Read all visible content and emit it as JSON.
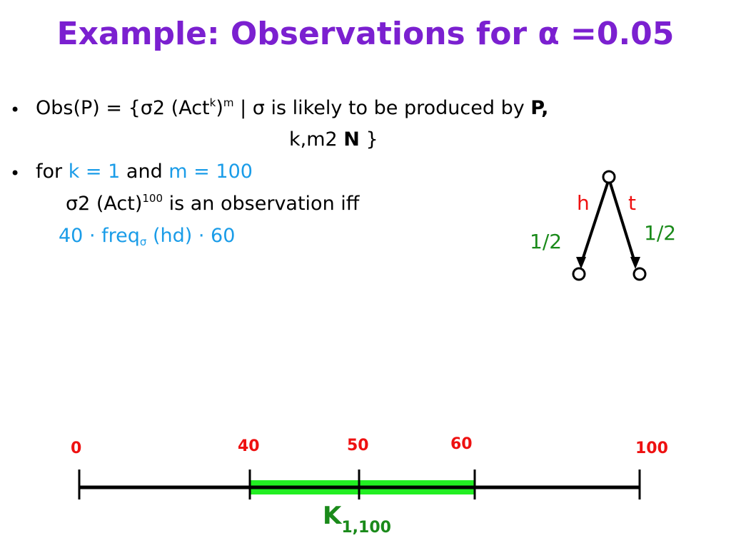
{
  "title": "Example: Observations for α =0.05",
  "bullet_symbol": "•",
  "line1": {
    "a": "Obs(P) = {",
    "sigma": "σ",
    "b": "2 (Act",
    "sup_k": "k",
    "c": ")",
    "sup_m": "m",
    "d": " | ",
    "sigma2": "σ",
    "e": " is likely to be produced by ",
    "bold_p": "P,"
  },
  "line2": {
    "a": "k,m2 ",
    "bold_n": "N",
    "b": " }"
  },
  "line3": {
    "for": "for ",
    "k_eq": "k = 1",
    "and": " and ",
    "m_eq": "m = 100"
  },
  "line4": {
    "sigma": "σ",
    "a": "2 (Act)",
    "sup": "100",
    "b": " is an observation iff"
  },
  "line5": {
    "a": "40 · freq",
    "sub": "σ",
    "b": " (hd) · 60"
  },
  "tree": {
    "left_label": "h",
    "right_label": "t",
    "left_prob": "1/2",
    "right_prob": "1/2"
  },
  "number_line": {
    "ticks": [
      "0",
      "40",
      "50",
      "60",
      "100"
    ],
    "interval_label": "K",
    "interval_sub": "1,100"
  },
  "colors": {
    "title": "#7b20d0",
    "highlight": "#1a9ce8",
    "label_red": "#ee1111",
    "label_green": "#1a8a1a",
    "interval_green": "#22ee22"
  }
}
